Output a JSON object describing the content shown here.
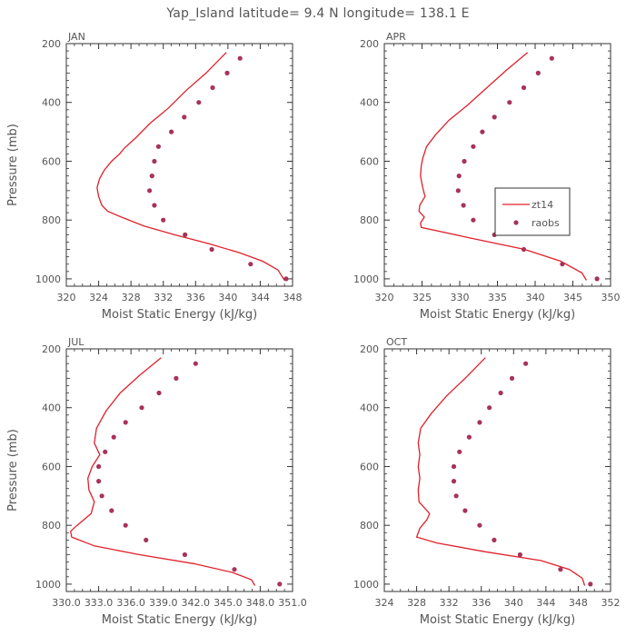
{
  "title": "Yap_Island  latitude= 9.4 N longitude= 138.1 E",
  "colors": {
    "model_line": "#e0202a",
    "obs_dots": "#a8325a",
    "axis": "#333333",
    "text": "#555555"
  },
  "chart_data": [
    {
      "type": "line",
      "panel_label": "JAN",
      "xlabel": "Moist Static Energy (kJ/kg)",
      "ylabel": "Pressure (mb)",
      "xlim": [
        320,
        348
      ],
      "ylim": [
        1025,
        200
      ],
      "xticks": [
        320,
        324,
        328,
        332,
        336,
        340,
        344,
        348
      ],
      "xtick_labels": [
        "320",
        "324",
        "328",
        "332",
        "336",
        "340",
        "344",
        "348"
      ],
      "yticks": [
        200,
        400,
        600,
        800,
        1000
      ],
      "ytick_labels": [
        "200",
        "400",
        "600",
        "800",
        "1000"
      ],
      "series": [
        {
          "name": "zt14",
          "kind": "line",
          "x": [
            339.8,
            337.3,
            334.8,
            332.6,
            330.4,
            328.6,
            327.2,
            326.6,
            325.6,
            324.7,
            324.1,
            323.8,
            324.0,
            324.4,
            325.1,
            326.8,
            329.6,
            333.4,
            337.6,
            341.3,
            344.3,
            346.2,
            347.0
          ],
          "y": [
            230,
            300,
            360,
            420,
            470,
            520,
            555,
            575,
            600,
            630,
            660,
            690,
            720,
            750,
            770,
            790,
            820,
            850,
            880,
            910,
            940,
            970,
            1005
          ]
        },
        {
          "name": "raobs",
          "kind": "scatter",
          "x": [
            341.5,
            339.9,
            338.1,
            336.4,
            334.6,
            333.0,
            331.4,
            330.9,
            330.6,
            330.3,
            330.9,
            332.0,
            334.7,
            338.0,
            342.8,
            347.2
          ],
          "y": [
            250,
            300,
            350,
            400,
            450,
            500,
            550,
            600,
            650,
            700,
            750,
            800,
            850,
            900,
            950,
            1000
          ]
        }
      ]
    },
    {
      "type": "line",
      "panel_label": "APR",
      "xlabel": "Moist Static Energy (kJ/kg)",
      "ylabel": "",
      "xlim": [
        320,
        350
      ],
      "ylim": [
        1025,
        200
      ],
      "xticks": [
        320,
        325,
        330,
        335,
        340,
        345,
        350
      ],
      "xtick_labels": [
        "320",
        "325",
        "330",
        "335",
        "340",
        "345",
        "350"
      ],
      "yticks": [
        200,
        400,
        600,
        800,
        1000
      ],
      "ytick_labels": [
        "200",
        "400",
        "600",
        "800",
        "1000"
      ],
      "legend": {
        "position": "center-right",
        "entries": [
          "zt14",
          "raobs"
        ]
      },
      "series": [
        {
          "name": "zt14",
          "kind": "line",
          "x": [
            339.0,
            336.2,
            333.6,
            331.0,
            328.6,
            326.8,
            325.6,
            325.1,
            324.9,
            324.8,
            325.1,
            325.4,
            324.7,
            324.6,
            325.3,
            324.8,
            324.9,
            331.2,
            338.6,
            343.4,
            346.2,
            346.8
          ],
          "y": [
            230,
            290,
            350,
            410,
            460,
            510,
            550,
            590,
            615,
            650,
            690,
            720,
            750,
            770,
            790,
            810,
            825,
            860,
            900,
            940,
            980,
            1005
          ]
        },
        {
          "name": "raobs",
          "kind": "scatter",
          "x": [
            342.2,
            340.4,
            338.5,
            336.6,
            334.6,
            333.0,
            331.8,
            330.6,
            329.9,
            329.8,
            330.5,
            331.8,
            334.6,
            338.5,
            343.6,
            348.2
          ],
          "y": [
            250,
            300,
            350,
            400,
            450,
            500,
            550,
            600,
            650,
            700,
            750,
            800,
            850,
            900,
            950,
            1000
          ]
        }
      ]
    },
    {
      "type": "line",
      "panel_label": "JUL",
      "xlabel": "Moist Static Energy (kJ/kg)",
      "ylabel": "Pressure (mb)",
      "xlim": [
        330.0,
        351.0
      ],
      "ylim": [
        1025,
        200
      ],
      "xticks": [
        330.0,
        333.0,
        336.0,
        339.0,
        342.0,
        345.0,
        348.0,
        351.0
      ],
      "xtick_labels": [
        "330.0",
        "333.0",
        "336.0",
        "339.0",
        "342.0",
        "345.0",
        "348.0",
        "351.0"
      ],
      "yticks": [
        200,
        400,
        600,
        800,
        1000
      ],
      "ytick_labels": [
        "200",
        "400",
        "600",
        "800",
        "1000"
      ],
      "series": [
        {
          "name": "zt14",
          "kind": "line",
          "x": [
            338.8,
            336.8,
            335.0,
            333.7,
            332.8,
            332.6,
            333.1,
            332.4,
            332.0,
            332.1,
            332.6,
            332.3,
            331.0,
            330.4,
            330.5,
            332.6,
            336.8,
            341.8,
            345.4,
            347.2,
            347.5
          ],
          "y": [
            230,
            290,
            350,
            410,
            470,
            520,
            560,
            600,
            640,
            680,
            720,
            760,
            800,
            820,
            840,
            870,
            900,
            930,
            960,
            985,
            1005
          ]
        },
        {
          "name": "raobs",
          "kind": "scatter",
          "x": [
            342.0,
            340.2,
            338.6,
            337.0,
            335.5,
            334.4,
            333.6,
            333.0,
            333.0,
            333.3,
            334.2,
            335.5,
            337.4,
            341.0,
            345.6,
            349.8
          ],
          "y": [
            250,
            300,
            350,
            400,
            450,
            500,
            550,
            600,
            650,
            700,
            750,
            800,
            850,
            900,
            950,
            1000
          ]
        }
      ]
    },
    {
      "type": "line",
      "panel_label": "OCT",
      "xlabel": "Moist Static Energy (kJ/kg)",
      "ylabel": "",
      "xlim": [
        324,
        352
      ],
      "ylim": [
        1025,
        200
      ],
      "xticks": [
        324,
        328,
        332,
        336,
        340,
        344,
        348,
        352
      ],
      "xtick_labels": [
        "324",
        "328",
        "332",
        "336",
        "340",
        "344",
        "348",
        "352"
      ],
      "yticks": [
        200,
        400,
        600,
        800,
        1000
      ],
      "ytick_labels": [
        "200",
        "400",
        "600",
        "800",
        "1000"
      ],
      "series": [
        {
          "name": "zt14",
          "kind": "line",
          "x": [
            336.5,
            334.0,
            331.7,
            329.8,
            328.5,
            328.2,
            328.4,
            328.2,
            328.4,
            328.2,
            328.3,
            329.6,
            329.3,
            328.4,
            328.0,
            330.5,
            336.5,
            343.4,
            346.9,
            348.5,
            348.8
          ],
          "y": [
            230,
            300,
            360,
            420,
            470,
            520,
            560,
            600,
            640,
            680,
            720,
            760,
            780,
            810,
            840,
            860,
            890,
            920,
            950,
            980,
            1005
          ]
        },
        {
          "name": "raobs",
          "kind": "scatter",
          "x": [
            341.5,
            339.8,
            338.4,
            337.0,
            335.8,
            334.5,
            333.3,
            332.6,
            332.6,
            332.9,
            334.0,
            335.8,
            337.6,
            340.8,
            345.8,
            349.5
          ],
          "y": [
            250,
            300,
            350,
            400,
            450,
            500,
            550,
            600,
            650,
            700,
            750,
            800,
            850,
            900,
            950,
            1000
          ]
        }
      ]
    }
  ]
}
